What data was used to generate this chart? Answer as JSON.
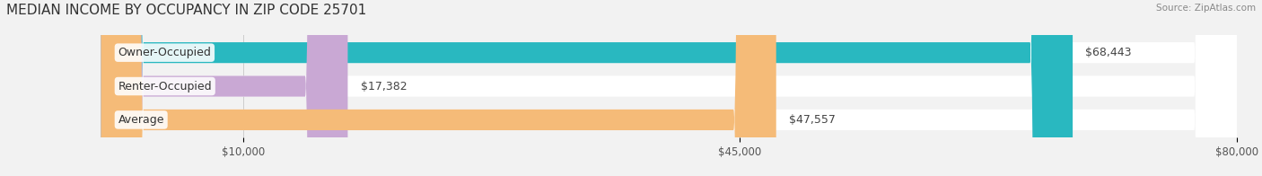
{
  "title": "MEDIAN INCOME BY OCCUPANCY IN ZIP CODE 25701",
  "source": "Source: ZipAtlas.com",
  "categories": [
    "Owner-Occupied",
    "Renter-Occupied",
    "Average"
  ],
  "values": [
    68443,
    17382,
    47557
  ],
  "labels": [
    "$68,443",
    "$17,382",
    "$47,557"
  ],
  "bar_colors": [
    "#29b8c0",
    "#c9a8d4",
    "#f5bb78"
  ],
  "xlim": [
    0,
    80000
  ],
  "xticks": [
    10000,
    45000,
    80000
  ],
  "xtick_labels": [
    "$10,000",
    "$45,000",
    "$80,000"
  ],
  "background_color": "#f2f2f2",
  "title_fontsize": 11,
  "label_fontsize": 9,
  "tick_fontsize": 8.5,
  "source_fontsize": 7.5
}
